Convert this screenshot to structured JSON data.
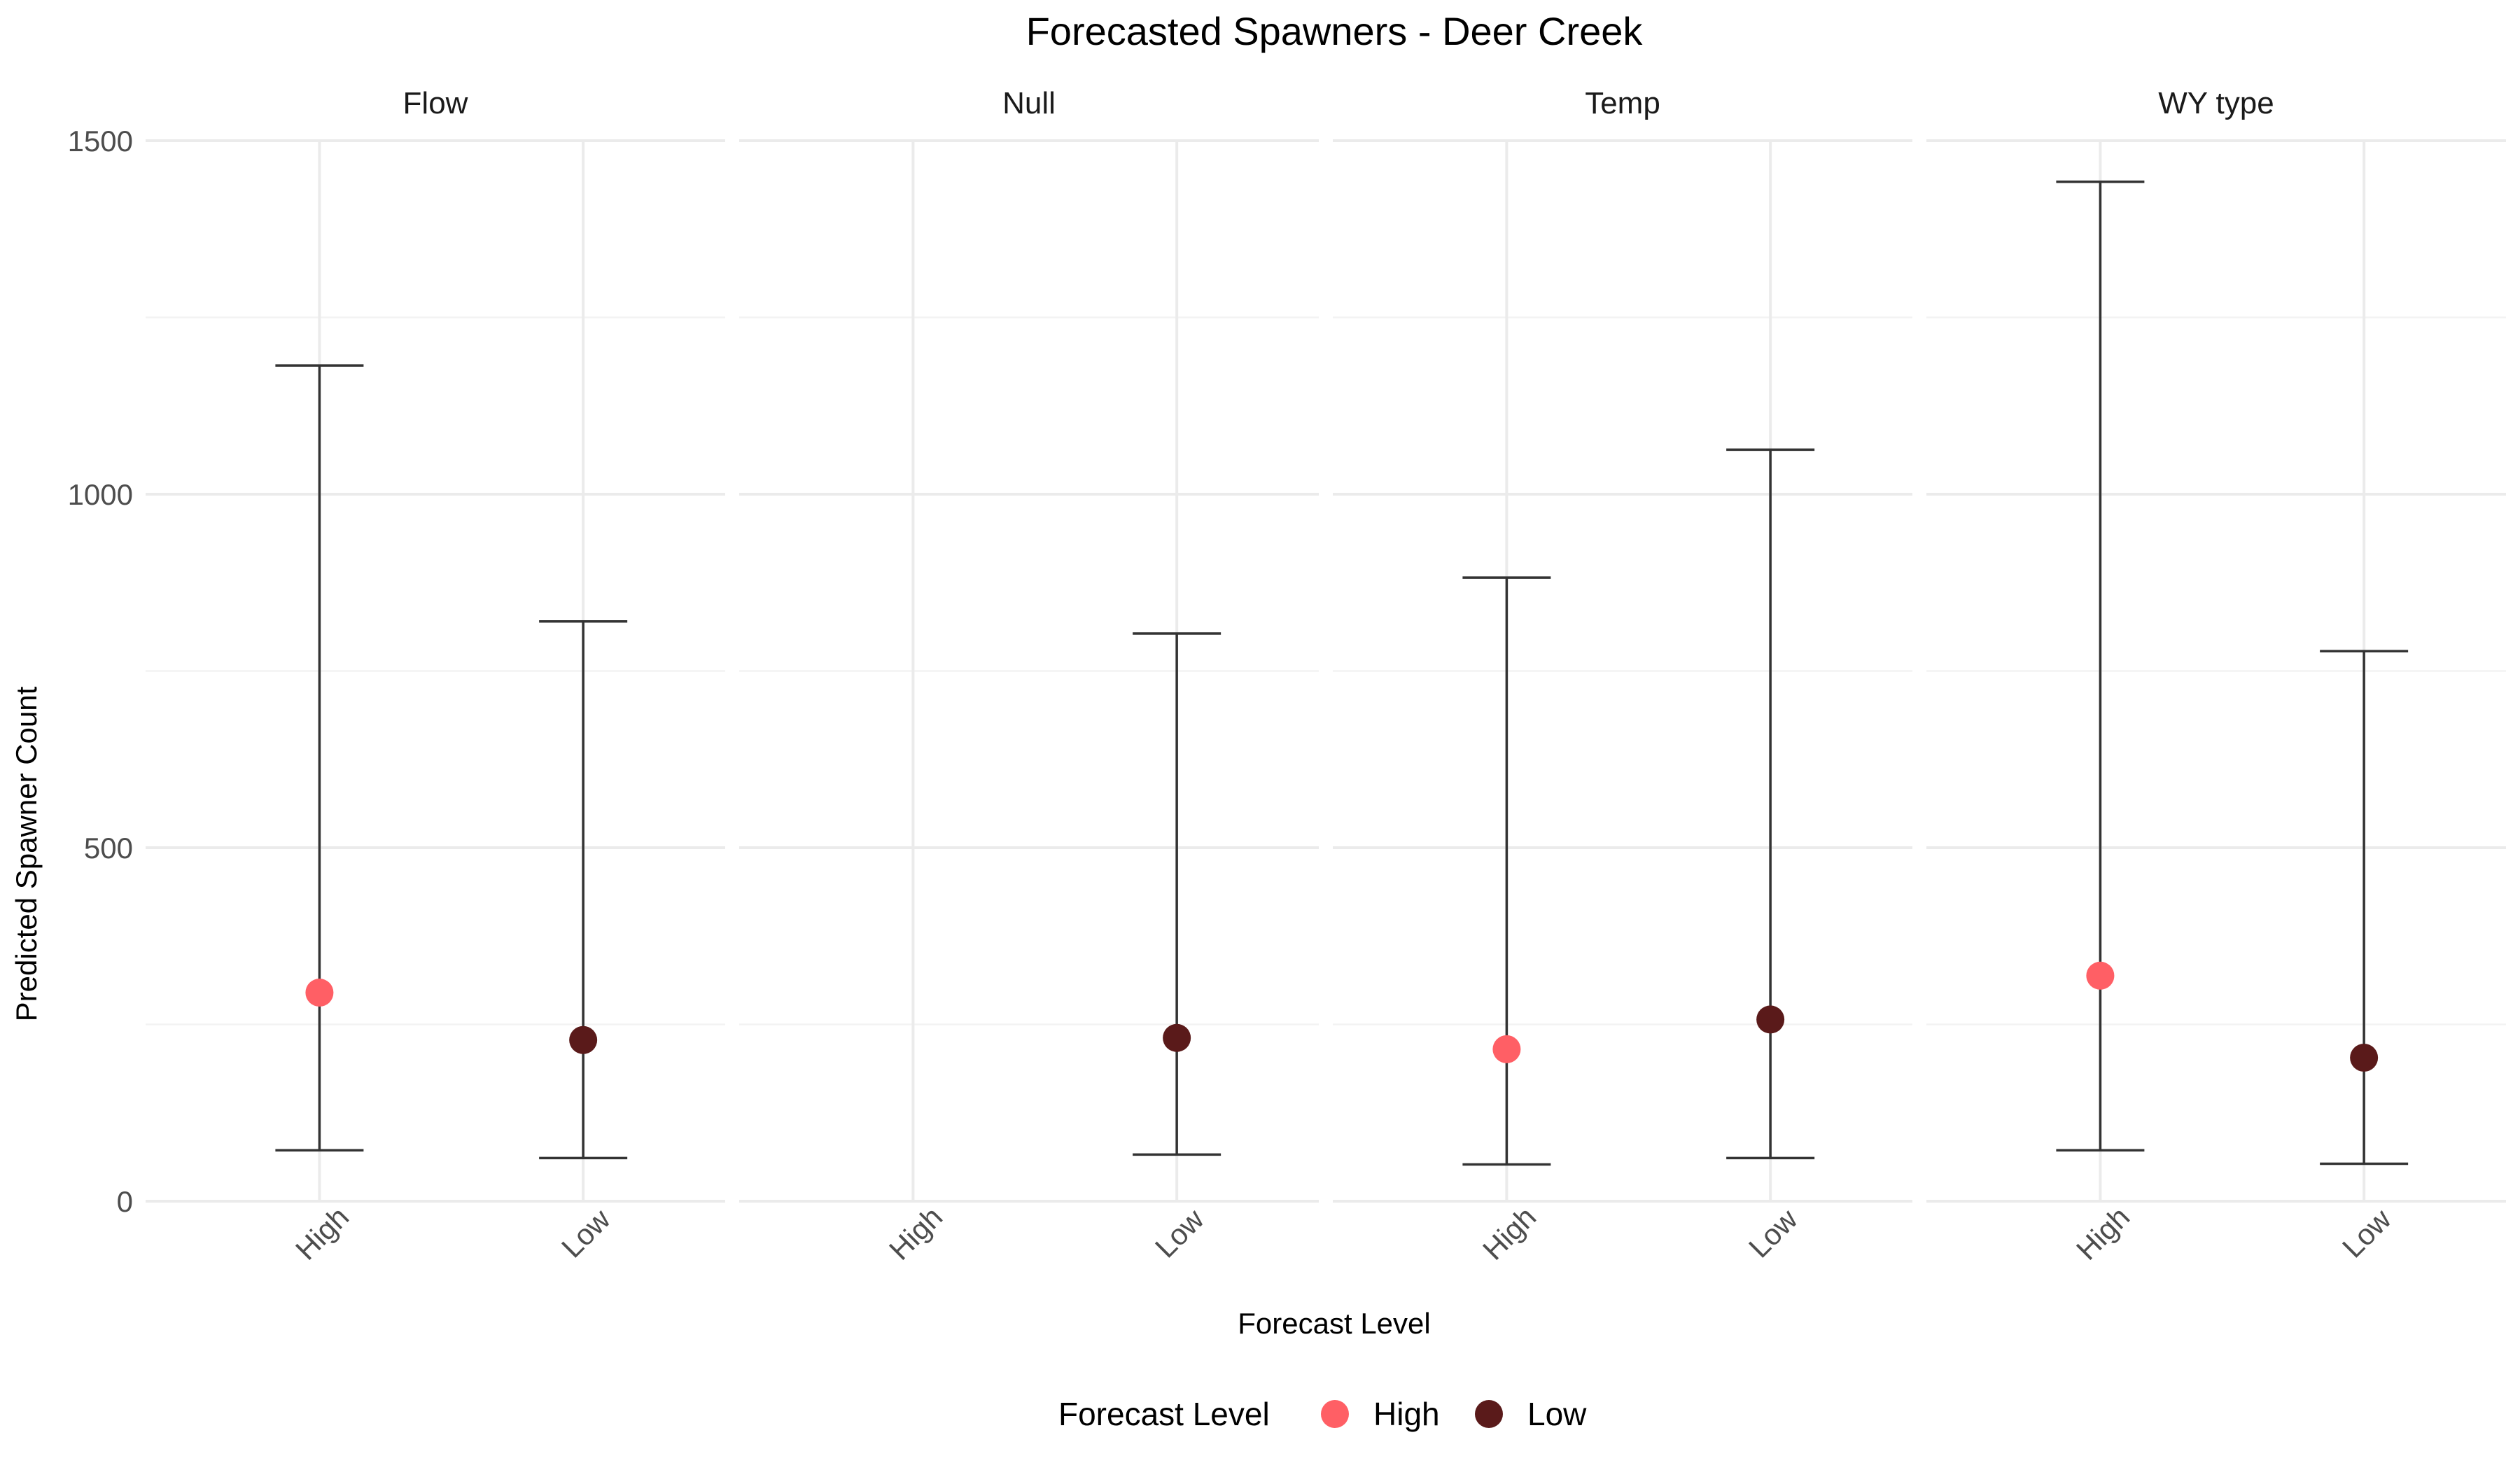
{
  "chart_data": {
    "type": "scatter",
    "title": "Forecasted Spawners - Deer Creek",
    "xlabel": "Forecast Level",
    "ylabel": "Predicted Spawner Count",
    "ylim": [
      0,
      1500
    ],
    "yticks": [
      "0",
      "500",
      "1000",
      "1500"
    ],
    "categories": [
      "High",
      "Low"
    ],
    "grid": true,
    "legend": {
      "title": "Forecast Level",
      "position": "bottom",
      "entries": [
        {
          "label": "High",
          "color": "#FF5F65"
        },
        {
          "label": "Low",
          "color": "#5A1A1A"
        }
      ]
    },
    "panels": [
      {
        "name": "Flow",
        "points": [
          {
            "level": "High",
            "value": 295,
            "lower": 72,
            "upper": 1182
          },
          {
            "level": "Low",
            "value": 228,
            "lower": 61,
            "upper": 820
          }
        ]
      },
      {
        "name": "Null",
        "points": [
          {
            "level": "Low",
            "value": 231,
            "lower": 66,
            "upper": 803
          }
        ]
      },
      {
        "name": "Temp",
        "points": [
          {
            "level": "High",
            "value": 215,
            "lower": 52,
            "upper": 882
          },
          {
            "level": "Low",
            "value": 257,
            "lower": 61,
            "upper": 1063
          }
        ]
      },
      {
        "name": "WY type",
        "points": [
          {
            "level": "High",
            "value": 319,
            "lower": 72,
            "upper": 1442
          },
          {
            "level": "Low",
            "value": 203,
            "lower": 53,
            "upper": 778
          }
        ]
      }
    ]
  }
}
